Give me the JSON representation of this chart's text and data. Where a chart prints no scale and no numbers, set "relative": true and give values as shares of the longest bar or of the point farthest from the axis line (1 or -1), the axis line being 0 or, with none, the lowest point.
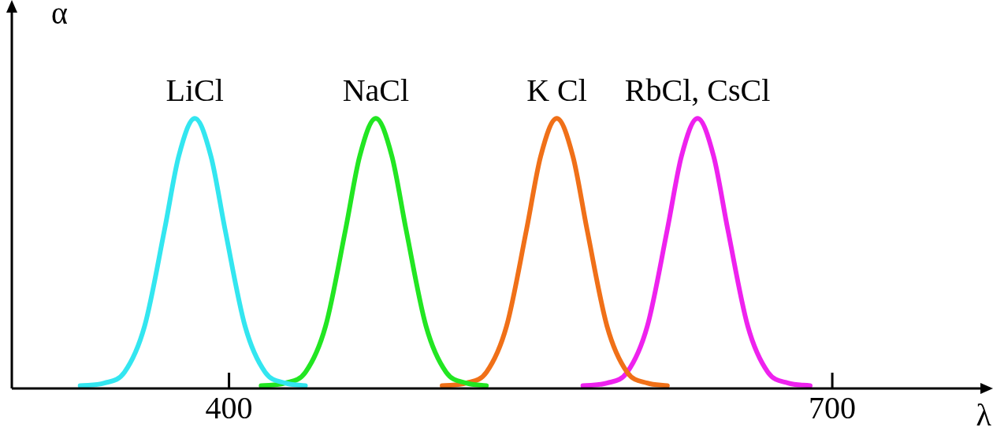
{
  "chart_data": {
    "type": "line",
    "xlabel": "λ",
    "ylabel": "α",
    "relative": true,
    "xlim": [
      292,
      776
    ],
    "xticks": [
      400,
      700
    ],
    "grid": false,
    "legend": false,
    "marker": "none",
    "line_style": "solid",
    "tick_labels": "x",
    "series": [
      {
        "name": "LiCl",
        "color": "#33e6f0",
        "x": [
          326,
          338,
          348,
          358,
          368,
          375,
          383,
          391,
          398,
          408,
          418,
          428,
          438
        ],
        "values": [
          0.01,
          0.02,
          0.06,
          0.23,
          0.59,
          0.86,
          1,
          0.86,
          0.59,
          0.23,
          0.06,
          0.02,
          0.01
        ]
      },
      {
        "name": "NaCl",
        "color": "#22e622",
        "x": [
          416,
          428,
          438,
          448,
          458,
          465,
          473,
          481,
          488,
          498,
          508,
          518,
          528
        ],
        "values": [
          0.01,
          0.02,
          0.06,
          0.23,
          0.59,
          0.86,
          1,
          0.86,
          0.59,
          0.23,
          0.06,
          0.02,
          0.01
        ]
      },
      {
        "name": "K Cl",
        "color": "#f07018",
        "x": [
          506,
          518,
          528,
          538,
          548,
          555,
          563,
          571,
          578,
          588,
          598,
          608,
          618
        ],
        "values": [
          0.01,
          0.02,
          0.06,
          0.23,
          0.59,
          0.86,
          1,
          0.86,
          0.59,
          0.23,
          0.06,
          0.02,
          0.01
        ]
      },
      {
        "name": "RbCl, CsCl",
        "color": "#ee22ee",
        "x": [
          576,
          588,
          598,
          608,
          618,
          625,
          633,
          641,
          648,
          658,
          668,
          678,
          689
        ],
        "values": [
          0.01,
          0.02,
          0.06,
          0.23,
          0.59,
          0.86,
          1,
          0.86,
          0.59,
          0.23,
          0.06,
          0.02,
          0.01
        ]
      }
    ]
  }
}
